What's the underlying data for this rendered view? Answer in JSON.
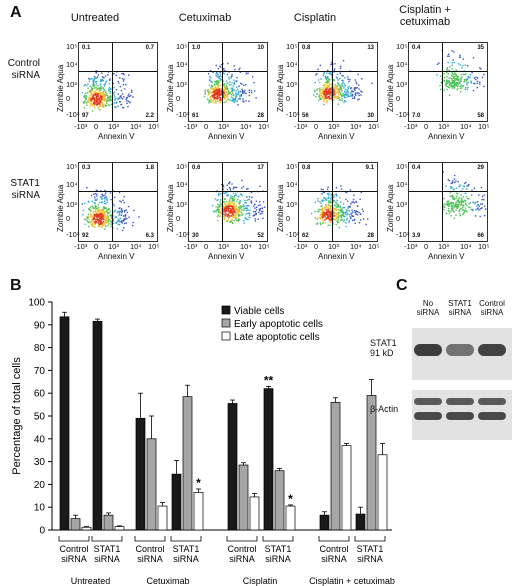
{
  "panel_a": {
    "letter": "A",
    "columns": [
      "Untreated",
      "Cetuximab",
      "Cisplatin",
      "Cisplatin +\ncetuximab"
    ],
    "rows": [
      "Control\nsiRNA",
      "STAT1\nsiRNA"
    ],
    "y_axis_label": "Zombie Aqua",
    "x_axis_label": "Annexin V",
    "tick_neg": "-10³",
    "tick_0": "0",
    "tick_3": "10³",
    "tick_4": "10⁴",
    "tick_5": "10⁵",
    "quadrants": [
      [
        {
          "ul": "0.1",
          "ur": "0.7",
          "ll": "97",
          "lr": "2.2"
        },
        {
          "ul": "1.0",
          "ur": "10",
          "ll": "61",
          "lr": "28"
        },
        {
          "ul": "0.8",
          "ur": "13",
          "ll": "56",
          "lr": "30"
        },
        {
          "ul": "0.4",
          "ur": "35",
          "ll": "7.0",
          "lr": "58"
        }
      ],
      [
        {
          "ul": "0.3",
          "ur": "1.8",
          "ll": "92",
          "lr": "6.3"
        },
        {
          "ul": "0.6",
          "ur": "17",
          "ll": "30",
          "lr": "52"
        },
        {
          "ul": "0.8",
          "ur": "9.1",
          "ll": "62",
          "lr": "28"
        },
        {
          "ul": "0.4",
          "ur": "29",
          "ll": "3.9",
          "lr": "66"
        }
      ]
    ]
  },
  "panel_b": {
    "letter": "B",
    "chart_data": {
      "type": "bar",
      "ylabel": "Percentage of total cells",
      "ylim": [
        0,
        100
      ],
      "yticks": [
        "0",
        "10",
        "20",
        "30",
        "40",
        "50",
        "60",
        "70",
        "80",
        "90",
        "100"
      ],
      "groups": [
        "Untreated",
        "Cetuximab",
        "Cisplatin",
        "Cisplatin + cetuximab"
      ],
      "subgroups": [
        "Control\nsiRNA",
        "STAT1\nsiRNA"
      ],
      "series": [
        {
          "name": "Viable cells",
          "color": "#1a1a1a",
          "values": [
            93.5,
            91.5,
            49,
            24.5,
            55.5,
            62,
            6.5,
            7
          ]
        },
        {
          "name": "Early apoptotic cells",
          "color": "#a6a6a6",
          "values": [
            5,
            6.5,
            40,
            58.5,
            28.5,
            26,
            56,
            59
          ]
        },
        {
          "name": "Late apoptotic cells",
          "color": "#ffffff",
          "values": [
            1.2,
            1.5,
            10.5,
            16.5,
            14.5,
            10.5,
            37,
            33
          ]
        }
      ],
      "errors": [
        [
          2,
          1,
          11,
          6,
          1.5,
          1,
          1.5,
          3
        ],
        [
          1.5,
          1,
          10,
          5,
          1,
          1,
          2,
          7
        ],
        [
          0.3,
          0.3,
          1.5,
          1.5,
          1.5,
          0.5,
          1,
          5
        ]
      ],
      "annotations": [
        {
          "group": 5,
          "series": 0,
          "text": "**"
        },
        {
          "group": 3,
          "series": 2,
          "text": "*"
        },
        {
          "group": 5,
          "series": 2,
          "text": "*"
        }
      ],
      "legend_position": "top-right"
    }
  },
  "panel_c": {
    "letter": "C",
    "lanes": [
      "No\nsiRNA",
      "STAT1\nsiRNA",
      "Control\nsiRNA"
    ],
    "band_labels": [
      "STAT1\n91 kD",
      "β-Actin"
    ],
    "stat1_intensity": [
      1.0,
      0.55,
      0.95
    ]
  }
}
